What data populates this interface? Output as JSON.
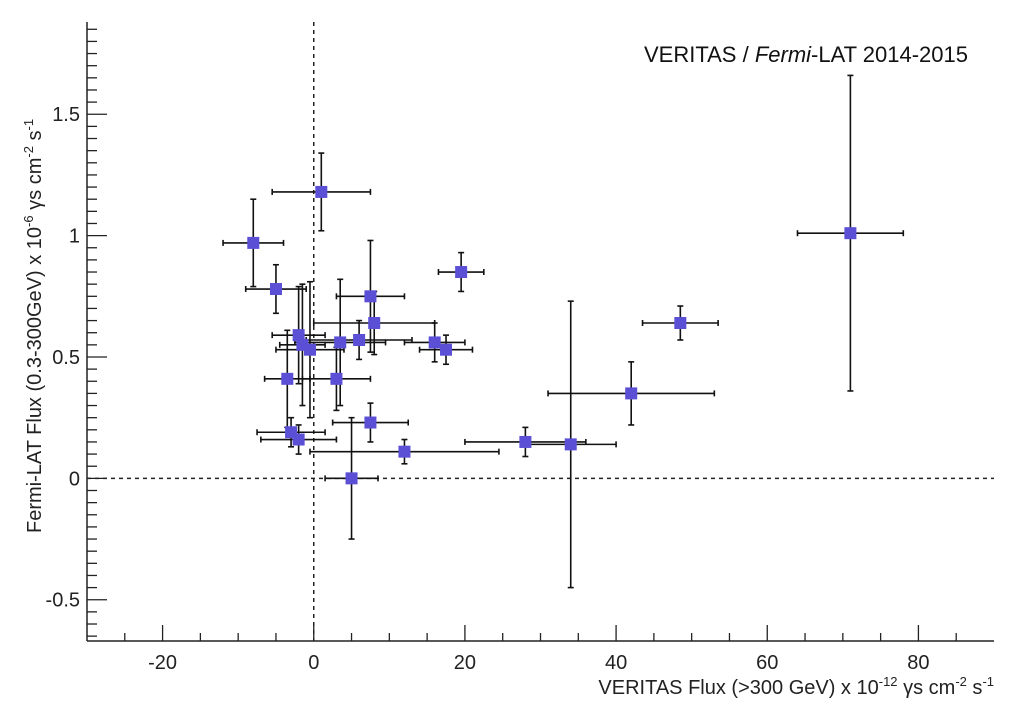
{
  "chart_data": {
    "type": "scatter",
    "title_main": "VERITAS / ",
    "title_italic": "Fermi",
    "title_rest": "-LAT 2014-2015",
    "xlabel": {
      "main": "VERITAS Flux ",
      "paren": "(>300 GeV)",
      "times": " x 10",
      "exp": "-12",
      "units_a": " γs cm",
      "units_exp1": "-2",
      "units_b": " s",
      "units_exp2": "-1"
    },
    "ylabel": {
      "main": "Fermi-LAT Flux (0.3-300GeV) x 10",
      "exp": "-6",
      "units_a": " γs cm",
      "units_exp1": "-2",
      "units_b": " s",
      "units_exp2": "-1"
    },
    "xlim": [
      -30,
      90
    ],
    "ylim": [
      -0.67,
      1.88
    ],
    "x_ticks": [
      -20,
      0,
      20,
      40,
      60,
      80
    ],
    "x_tick_labels": [
      "-20",
      "0",
      "20",
      "40",
      "60",
      "80"
    ],
    "y_ticks": [
      -0.5,
      0,
      0.5,
      1,
      1.5
    ],
    "y_tick_labels": [
      "-0.5",
      "0",
      "0.5",
      "1",
      "1.5"
    ],
    "reference_lines": {
      "x": 0,
      "y": 0,
      "style": "dashed"
    },
    "marker_color": "#5b4fd6",
    "points": [
      {
        "x": 1,
        "xerr": 6.5,
        "y": 1.18,
        "yerr": 0.16
      },
      {
        "x": -8,
        "xerr": 4,
        "y": 0.97,
        "yerr": 0.18
      },
      {
        "x": 71,
        "xerr": 7,
        "y": 1.01,
        "yerr": 0.65
      },
      {
        "x": 19.5,
        "xerr": 3,
        "y": 0.85,
        "yerr": 0.08
      },
      {
        "x": -5,
        "xerr": 4,
        "y": 0.78,
        "yerr": 0.1
      },
      {
        "x": 7.5,
        "xerr": 4.5,
        "y": 0.75,
        "yerr": 0.23
      },
      {
        "x": 48.5,
        "xerr": 5,
        "y": 0.64,
        "yerr": 0.07
      },
      {
        "x": 8,
        "xerr": 8,
        "y": 0.64,
        "yerr": 0.13
      },
      {
        "x": -2,
        "xerr": 3.5,
        "y": 0.59,
        "yerr": 0.2
      },
      {
        "x": 6,
        "xerr": 7,
        "y": 0.57,
        "yerr": 0.08
      },
      {
        "x": 3.5,
        "xerr": 6,
        "y": 0.56,
        "yerr": 0.26
      },
      {
        "x": 16,
        "xerr": 4,
        "y": 0.56,
        "yerr": 0.08
      },
      {
        "x": -1.5,
        "xerr": 3,
        "y": 0.55,
        "yerr": 0.25
      },
      {
        "x": -0.5,
        "xerr": 4.5,
        "y": 0.53,
        "yerr": 0.28
      },
      {
        "x": 17.5,
        "xerr": 3.5,
        "y": 0.53,
        "yerr": 0.06
      },
      {
        "x": -3.5,
        "xerr": 3,
        "y": 0.41,
        "yerr": 0.2
      },
      {
        "x": 3,
        "xerr": 4.5,
        "y": 0.41,
        "yerr": 0.13
      },
      {
        "x": 42,
        "xerr": 11,
        "y": 0.35,
        "yerr": 0.13
      },
      {
        "x": 7.5,
        "xerr": 5,
        "y": 0.23,
        "yerr": 0.08
      },
      {
        "x": -3,
        "xerr": 4.5,
        "y": 0.19,
        "yerr": 0.06
      },
      {
        "x": -2,
        "xerr": 5,
        "y": 0.16,
        "yerr": 0.06
      },
      {
        "x": 28,
        "xerr": 8,
        "y": 0.15,
        "yerr": 0.06
      },
      {
        "x": 34,
        "xerr": 6,
        "y": 0.14,
        "yerr": 0.59
      },
      {
        "x": 12,
        "xerr": 12.5,
        "y": 0.11,
        "yerr": 0.05
      },
      {
        "x": 5,
        "xerr": 3.5,
        "y": 0.0,
        "yerr": 0.25
      }
    ]
  }
}
